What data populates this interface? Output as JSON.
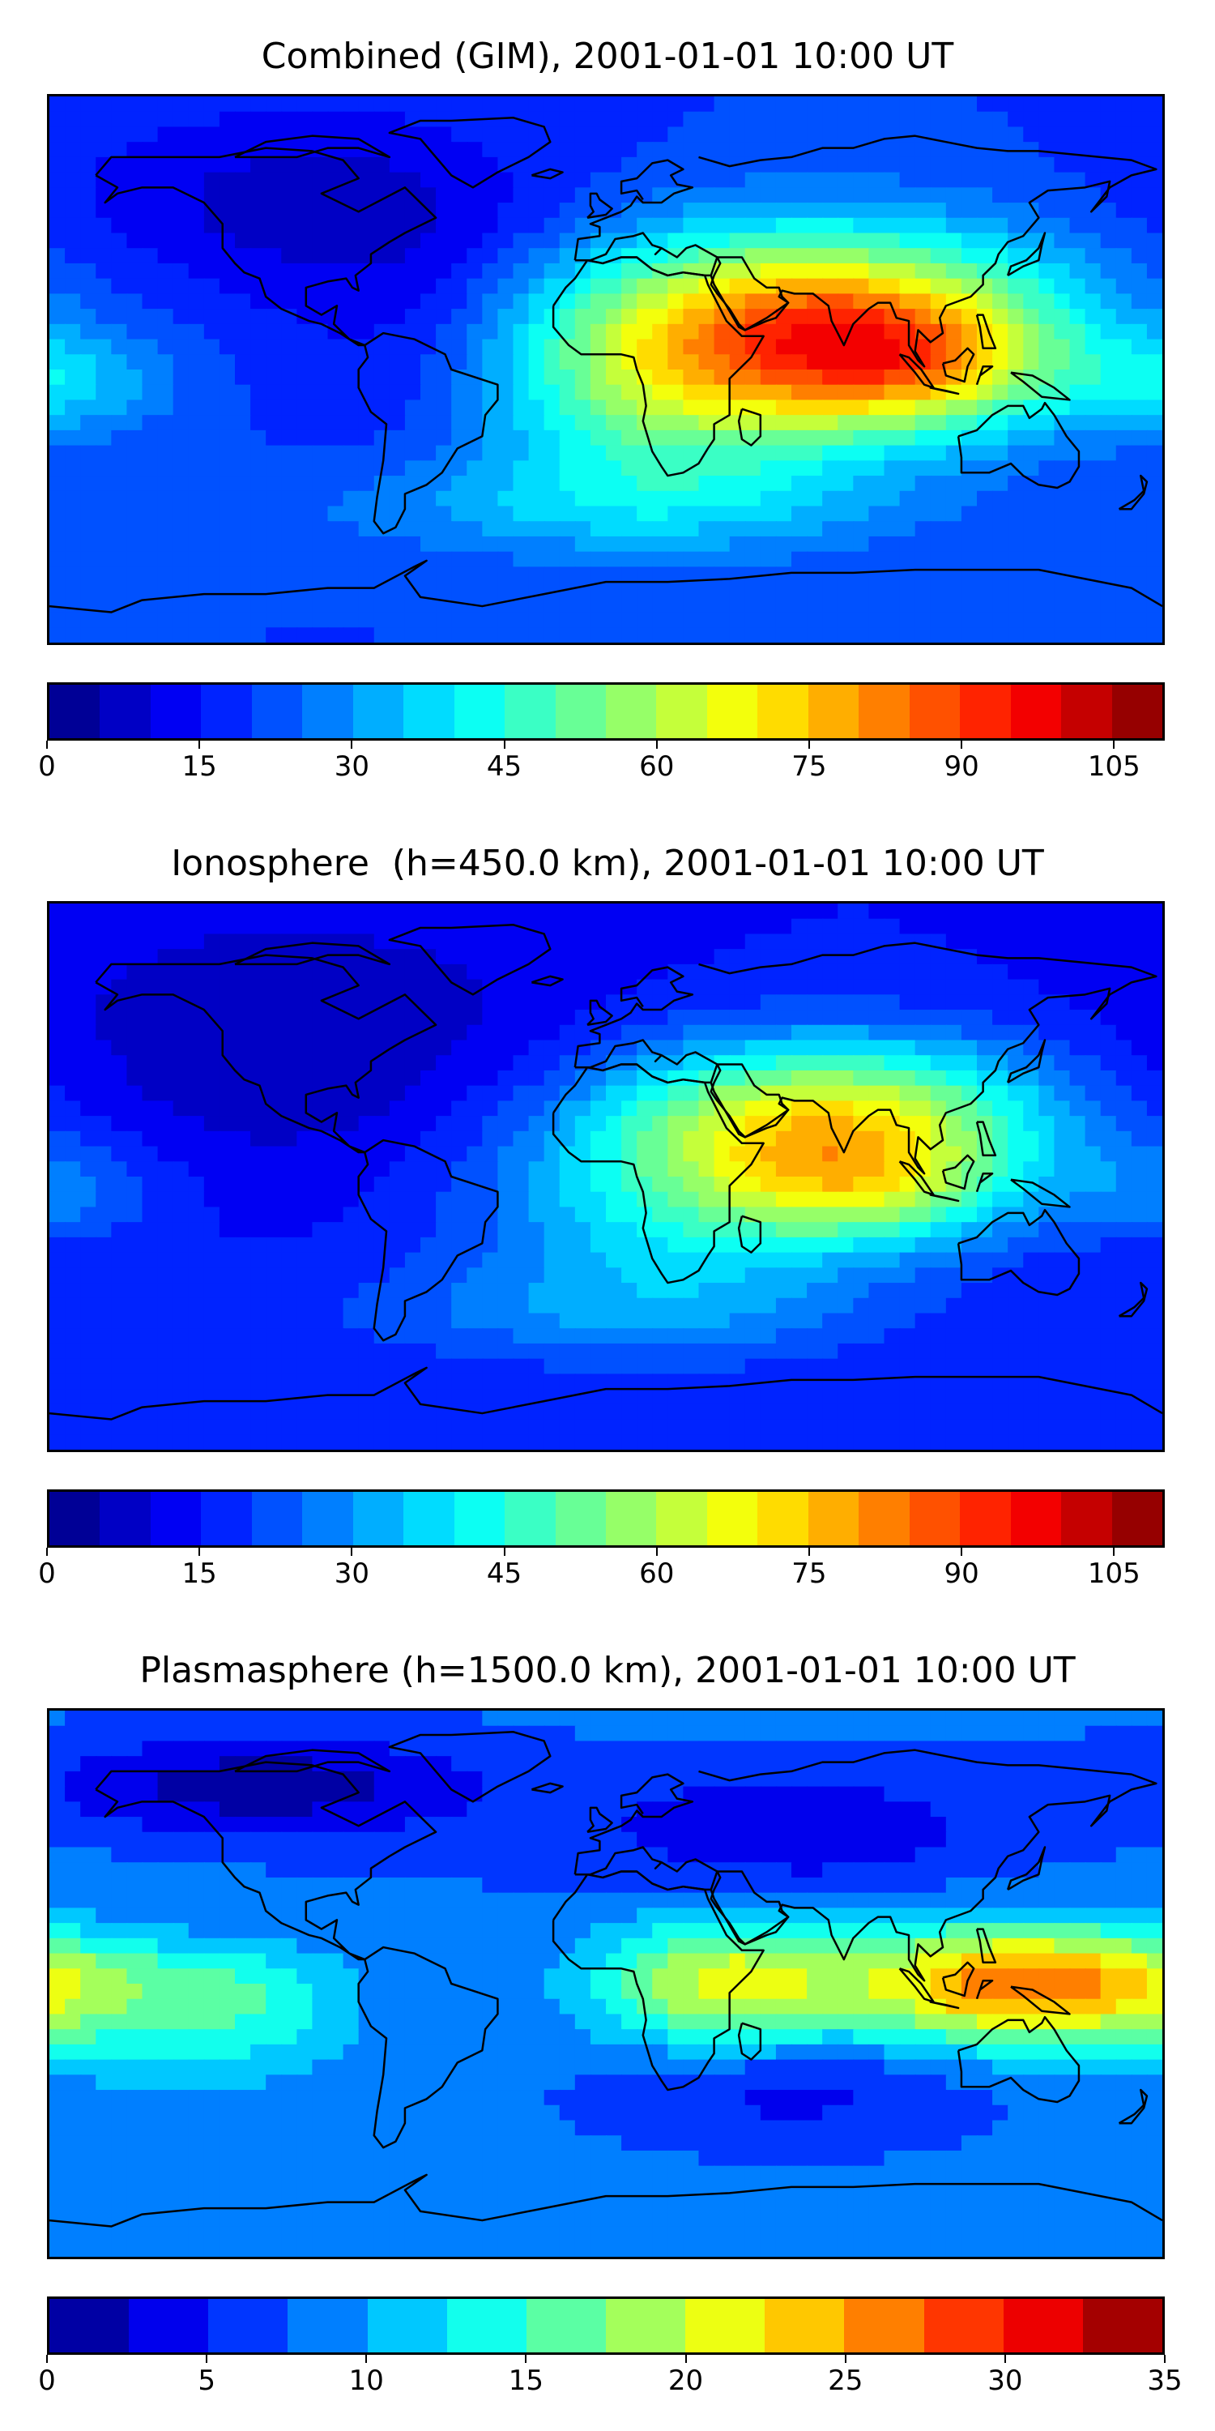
{
  "panels": [
    {
      "title": "Combined (GIM), 2001-01-01 10:00 UT",
      "colorbar": {
        "min": 0,
        "max": 110,
        "step": 5,
        "ticks": [
          0,
          15,
          30,
          45,
          60,
          75,
          90,
          105
        ]
      },
      "field": {
        "background": 20,
        "blobs": [
          {
            "lon": 70,
            "lat": 15,
            "amp": 58,
            "slon": 55,
            "slat": 22
          },
          {
            "lon": 100,
            "lat": 0,
            "amp": 25,
            "slon": 30,
            "slat": 15
          },
          {
            "lon": 20,
            "lat": -10,
            "amp": 25,
            "slon": 45,
            "slat": 25
          },
          {
            "lon": 0,
            "lat": -45,
            "amp": 12,
            "slon": 70,
            "slat": 12
          },
          {
            "lon": -178,
            "lat": -5,
            "amp": 15,
            "slon": 25,
            "slat": 12
          },
          {
            "lon": -100,
            "lat": 55,
            "amp": -12,
            "slon": 55,
            "slat": 22
          },
          {
            "lon": -60,
            "lat": 10,
            "amp": -8,
            "slon": 30,
            "slat": 30
          }
        ]
      }
    },
    {
      "title": "Ionosphere  (h=450.0 km), 2001-01-01 10:00 UT",
      "colorbar": {
        "min": 0,
        "max": 110,
        "step": 5,
        "ticks": [
          0,
          15,
          30,
          45,
          60,
          75,
          90,
          105
        ]
      },
      "field": {
        "background": 15,
        "blobs": [
          {
            "lon": 75,
            "lat": 20,
            "amp": 48,
            "slon": 50,
            "slat": 18
          },
          {
            "lon": 85,
            "lat": -5,
            "amp": 30,
            "slon": 35,
            "slat": 14
          },
          {
            "lon": 20,
            "lat": -10,
            "amp": 22,
            "slon": 45,
            "slat": 25
          },
          {
            "lon": 0,
            "lat": -45,
            "amp": 10,
            "slon": 70,
            "slat": 12
          },
          {
            "lon": -178,
            "lat": -5,
            "amp": 12,
            "slon": 25,
            "slat": 12
          },
          {
            "lon": -100,
            "lat": 45,
            "amp": -10,
            "slon": 60,
            "slat": 30
          }
        ]
      }
    },
    {
      "title": "Plasmasphere (h=1500.0 km), 2001-01-01 10:00 UT",
      "colorbar": {
        "min": 0,
        "max": 35,
        "step": 2.5,
        "ticks": [
          0,
          5,
          10,
          15,
          20,
          25,
          30,
          35
        ]
      },
      "field": {
        "background": 8,
        "blobs": [
          {
            "lon": 40,
            "lat": 0,
            "amp": 13,
            "slon": 30,
            "slat": 15
          },
          {
            "lon": 130,
            "lat": 0,
            "amp": 18,
            "slon": 35,
            "slat": 14
          },
          {
            "lon": -170,
            "lat": 0,
            "amp": 8,
            "slon": 30,
            "slat": 18
          },
          {
            "lon": -115,
            "lat": -5,
            "amp": 6,
            "slon": 25,
            "slat": 18
          },
          {
            "lon": -110,
            "lat": 65,
            "amp": -7,
            "slon": 50,
            "slat": 12
          },
          {
            "lon": 60,
            "lat": 50,
            "amp": -5,
            "slon": 50,
            "slat": 15
          },
          {
            "lon": 60,
            "lat": -35,
            "amp": -4,
            "slon": 40,
            "slat": 12
          },
          {
            "lon": -150,
            "lat": 20,
            "amp": -3,
            "slon": 50,
            "slat": 10
          }
        ]
      }
    }
  ],
  "colors": {
    "jet_stops": [
      "#00007f",
      "#0000ff",
      "#007fff",
      "#00ffff",
      "#7fff7f",
      "#ffff00",
      "#ff7f00",
      "#ff0000",
      "#7f0000"
    ],
    "coastline": "#000000"
  }
}
